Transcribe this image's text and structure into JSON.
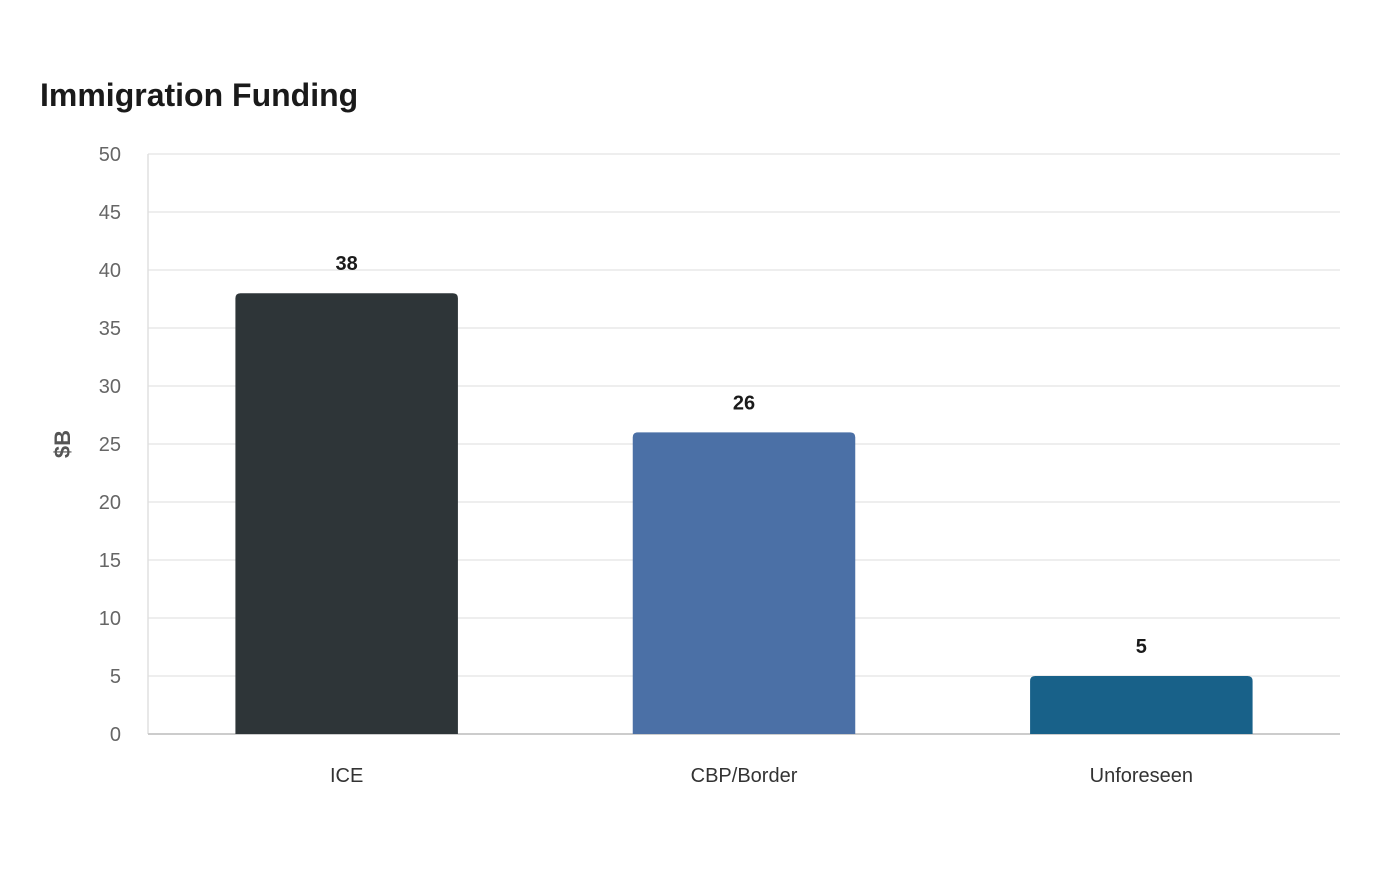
{
  "chart_data": {
    "type": "bar",
    "title": "Immigration Funding",
    "xlabel": "",
    "ylabel": "$B",
    "categories": [
      "ICE",
      "CBP/Border",
      "Unforeseen"
    ],
    "values": [
      38,
      26,
      5
    ],
    "ylim": [
      0,
      50
    ],
    "yticks": [
      "0",
      "5",
      "10",
      "15",
      "20",
      "25",
      "30",
      "35",
      "40",
      "45",
      "50"
    ],
    "value_labels": [
      "38",
      "26",
      "5"
    ],
    "grid": true,
    "legend": "none",
    "colors": [
      "#2e3538",
      "#4b70a6",
      "#186189"
    ]
  }
}
